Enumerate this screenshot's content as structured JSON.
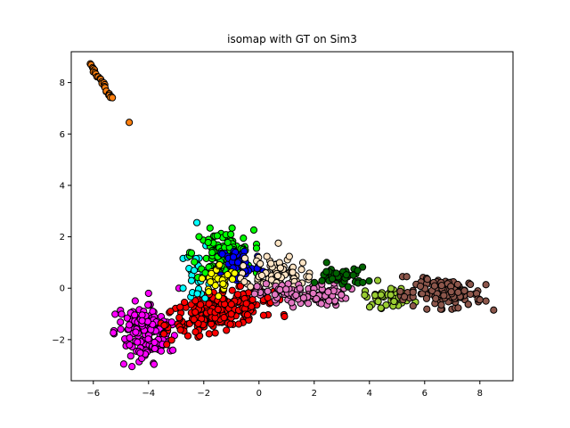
{
  "chart_data": {
    "type": "scatter",
    "title": "isomap with GT on Sim3",
    "xlabel": "",
    "ylabel": "",
    "xlim": [
      -6.8,
      9.2
    ],
    "ylim": [
      -3.6,
      9.2
    ],
    "xticks": [
      -6,
      -4,
      -2,
      0,
      2,
      4,
      6,
      8
    ],
    "yticks": [
      -2,
      0,
      2,
      4,
      6,
      8
    ],
    "xtick_labels": [
      "−6",
      "−4",
      "−2",
      "0",
      "2",
      "4",
      "6",
      "8"
    ],
    "ytick_labels": [
      "−2",
      "0",
      "2",
      "4",
      "6",
      "8"
    ],
    "grid": false,
    "legend": "none",
    "marker_edge_color": "#000000",
    "clusters": [
      {
        "color": "#ff7f0e",
        "kind": "line",
        "x0": -6.1,
        "y0": 8.7,
        "x1": -5.3,
        "y1": 7.35,
        "n": 26,
        "extra": [
          [
            -4.7,
            6.45
          ]
        ]
      },
      {
        "color": "#ff00ff",
        "kind": "blob",
        "cx": -4.1,
        "cy": -1.7,
        "sx": 0.45,
        "sy": 0.55,
        "rot": 0.6,
        "n": 170,
        "extra": [
          [
            -4.0,
            -0.2
          ],
          [
            -4.6,
            -3.05
          ],
          [
            -4.9,
            -2.95
          ],
          [
            -2.9,
            -0.0
          ]
        ]
      },
      {
        "color": "#ff0000",
        "kind": "blob",
        "cx": -1.4,
        "cy": -0.9,
        "sx": 1.0,
        "sy": 0.35,
        "rot": 0.25,
        "n": 260,
        "extra": [
          [
            -2.7,
            -0.55
          ],
          [
            -2.3,
            -1.7
          ]
        ]
      },
      {
        "color": "#00ffff",
        "kind": "blob",
        "cx": -2.2,
        "cy": 0.6,
        "sx": 0.25,
        "sy": 0.55,
        "rot": 0.0,
        "n": 26,
        "extra": [
          [
            -2.25,
            2.55
          ],
          [
            -2.75,
            0.0
          ]
        ]
      },
      {
        "color": "#00ff00",
        "kind": "blob",
        "cx": -1.3,
        "cy": 1.35,
        "sx": 0.55,
        "sy": 0.45,
        "rot": 0.0,
        "n": 110,
        "extra": []
      },
      {
        "color": "#0000ff",
        "kind": "blob",
        "cx": -0.7,
        "cy": 0.9,
        "sx": 0.4,
        "sy": 0.4,
        "rot": 0.0,
        "n": 60,
        "extra": []
      },
      {
        "color": "#ffff00",
        "kind": "blob",
        "cx": -1.4,
        "cy": 0.35,
        "sx": 0.35,
        "sy": 0.3,
        "rot": 0.0,
        "n": 30,
        "extra": []
      },
      {
        "color": "#ffe4c4",
        "kind": "blob",
        "cx": 0.6,
        "cy": 0.55,
        "sx": 0.55,
        "sy": 0.35,
        "rot": -0.2,
        "n": 90,
        "extra": [
          [
            0.7,
            1.75
          ]
        ]
      },
      {
        "color": "#e377c2",
        "kind": "blob",
        "cx": 1.6,
        "cy": -0.25,
        "sx": 0.8,
        "sy": 0.22,
        "rot": 0.0,
        "n": 110,
        "extra": []
      },
      {
        "color": "#006400",
        "kind": "blob",
        "cx": 3.0,
        "cy": 0.45,
        "sx": 0.45,
        "sy": 0.18,
        "rot": 0.0,
        "n": 45,
        "extra": [
          [
            2.45,
            1.0
          ]
        ]
      },
      {
        "color": "#9acd32",
        "kind": "blob",
        "cx": 4.7,
        "cy": -0.35,
        "sx": 0.45,
        "sy": 0.2,
        "rot": 0.0,
        "n": 40,
        "extra": [
          [
            4.3,
            0.3
          ]
        ]
      },
      {
        "color": "#8c564b",
        "kind": "blob",
        "cx": 5.2,
        "cy": -0.3,
        "sx": 0.12,
        "sy": 0.08,
        "rot": 0.0,
        "n": 6,
        "extra": [
          [
            5.2,
            0.45
          ],
          [
            5.35,
            0.45
          ]
        ]
      },
      {
        "color": "#8c564b",
        "kind": "blob",
        "cx": 6.9,
        "cy": -0.2,
        "sx": 0.6,
        "sy": 0.28,
        "rot": 0.0,
        "n": 120,
        "extra": [
          [
            8.0,
            -0.45
          ],
          [
            8.5,
            -0.85
          ],
          [
            6.1,
            0.35
          ]
        ]
      }
    ]
  }
}
